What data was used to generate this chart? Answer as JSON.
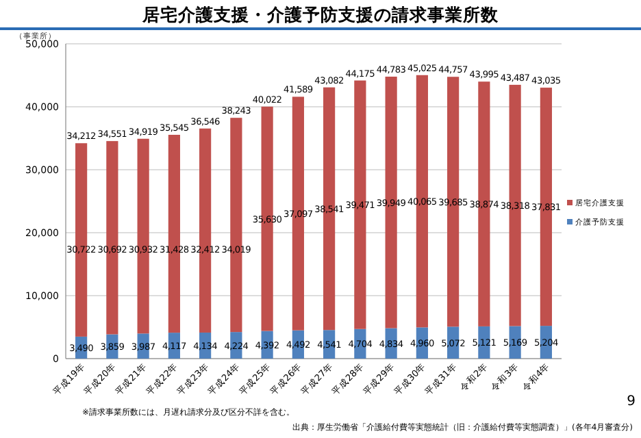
{
  "chart_data": {
    "type": "bar",
    "stacked": true,
    "title": "居宅介護支援・介護予防支援の請求事業所数",
    "ylabel": "（事業所）",
    "categories": [
      "平成19年",
      "平成20年",
      "平成21年",
      "平成22年",
      "平成23年",
      "平成24年",
      "平成25年",
      "平成26年",
      "平成27年",
      "平成28年",
      "平成29年",
      "平成30年",
      "平成31年",
      "令和2年",
      "令和3年",
      "令和4年"
    ],
    "series": [
      {
        "name": "介護予防支援",
        "color": "#4f81bd",
        "values": [
          3490,
          3859,
          3987,
          4117,
          4134,
          4224,
          4392,
          4492,
          4541,
          4704,
          4834,
          4960,
          5072,
          5121,
          5169,
          5204
        ],
        "value_labels": [
          "3,490",
          "3,859",
          "3,987",
          "4,117",
          "4,134",
          "4,224",
          "4,392",
          "4,492",
          "4,541",
          "4,704",
          "4,834",
          "4,960",
          "5,072",
          "5,121",
          "5,169",
          "5,204"
        ]
      },
      {
        "name": "居宅介護支援",
        "color": "#c0504d",
        "values": [
          30722,
          30692,
          30932,
          31428,
          32412,
          34019,
          35630,
          37097,
          38541,
          39471,
          39949,
          40065,
          39685,
          38874,
          38318,
          37831
        ],
        "value_labels": [
          "30,722",
          "30,692",
          "30,932",
          "31,428",
          "32,412",
          "34,019",
          "35,630",
          "37,097",
          "38,541",
          "39,471",
          "39,949",
          "40,065",
          "39,685",
          "38,874",
          "38,318",
          "37,831"
        ]
      }
    ],
    "totals": [
      "34,212",
      "34,551",
      "34,919",
      "35,545",
      "36,546",
      "38,243",
      "40,022",
      "41,589",
      "43,082",
      "44,175",
      "44,783",
      "45,025",
      "44,757",
      "43,995",
      "43,487",
      "43,035"
    ],
    "ylim": [
      0,
      50000
    ],
    "yticks": [
      {
        "value": 0,
        "label": "0"
      },
      {
        "value": 10000,
        "label": "10,000"
      },
      {
        "value": 20000,
        "label": "20,000"
      },
      {
        "value": 30000,
        "label": "30,000"
      },
      {
        "value": 40000,
        "label": "40,000"
      },
      {
        "value": 50000,
        "label": "50,000"
      }
    ],
    "grid": "y",
    "legend": "right",
    "annotations": [
      "※請求事業所数には、月遅れ請求分及び区分不詳を含む。",
      "出典：厚生労働省「介護給付費等実態統計（旧：介護給付費等実態調査）」(各年4月審査分)",
      "9"
    ]
  }
}
